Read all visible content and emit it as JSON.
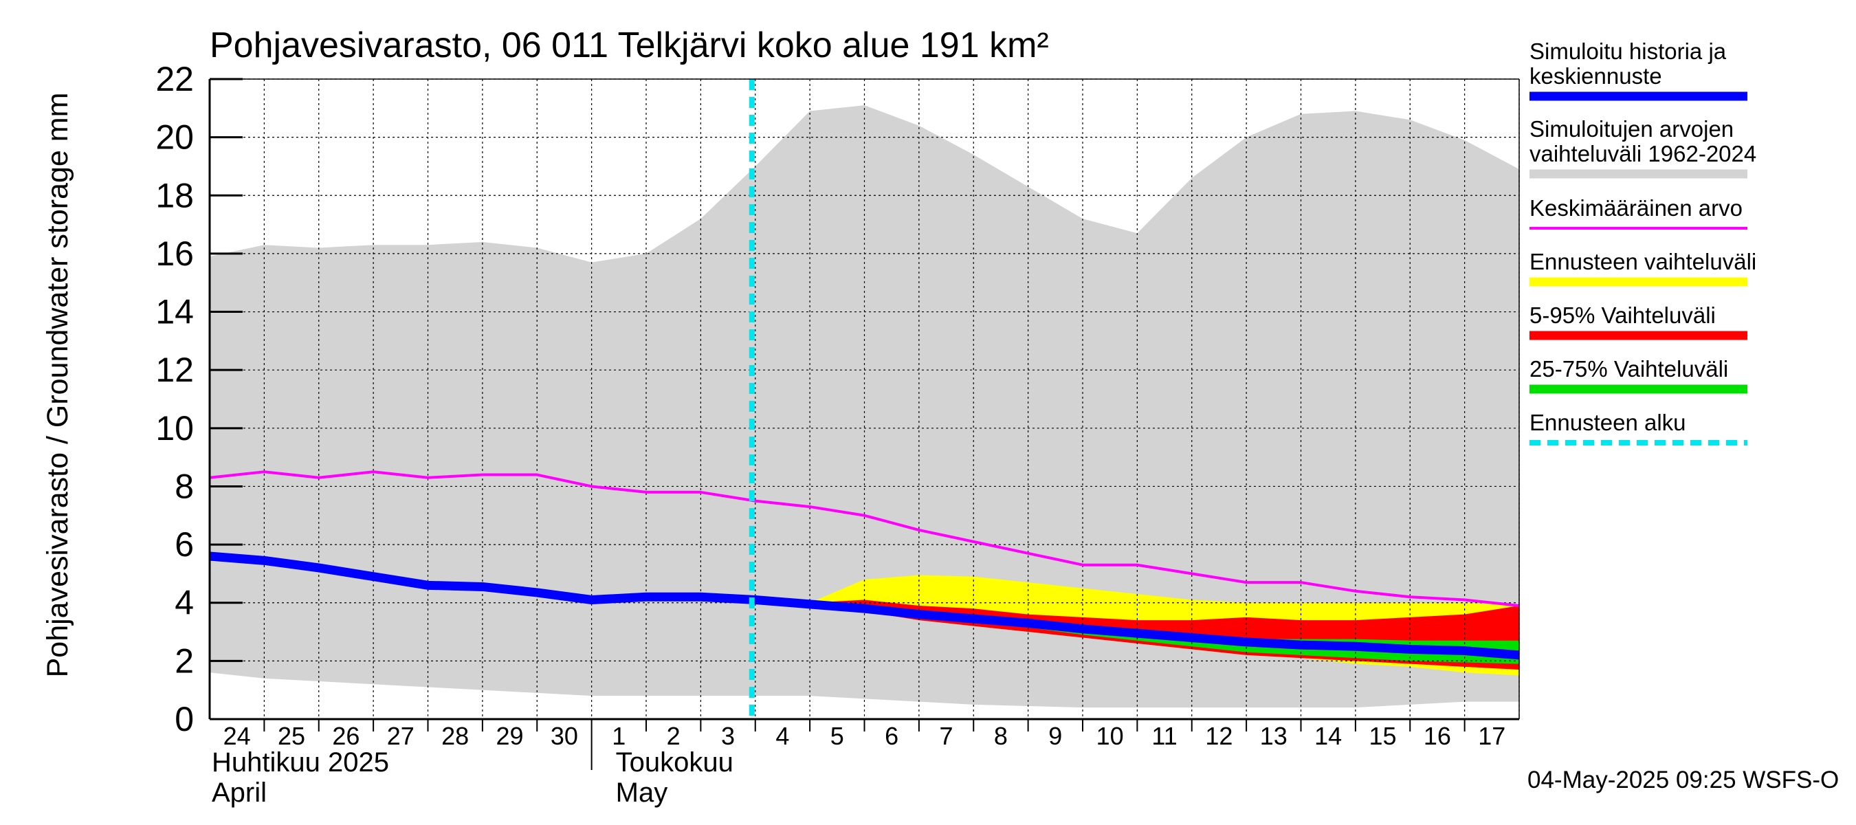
{
  "chart_data": {
    "type": "area",
    "title": "Pohjavesivarasto, 06 011 Telkjärvi koko alue 191 km²",
    "ylabel": "Pohjavesivarasto / Groundwater storage   mm",
    "ylim": [
      0,
      22
    ],
    "yticks": [
      0,
      2,
      4,
      6,
      8,
      10,
      12,
      14,
      16,
      18,
      20,
      22
    ],
    "grid": true,
    "legend_position": "right",
    "x_dates": [
      "2025-04-24",
      "2025-04-25",
      "2025-04-26",
      "2025-04-27",
      "2025-04-28",
      "2025-04-29",
      "2025-04-30",
      "2025-05-01",
      "2025-05-02",
      "2025-05-03",
      "2025-05-04",
      "2025-05-05",
      "2025-05-06",
      "2025-05-07",
      "2025-05-08",
      "2025-05-09",
      "2025-05-10",
      "2025-05-11",
      "2025-05-12",
      "2025-05-13",
      "2025-05-14",
      "2025-05-15",
      "2025-05-16",
      "2025-05-17",
      "2025-05-18"
    ],
    "x_tick_labels": [
      "24",
      "25",
      "26",
      "27",
      "28",
      "29",
      "30",
      "1",
      "2",
      "3",
      "4",
      "5",
      "6",
      "7",
      "8",
      "9",
      "10",
      "11",
      "12",
      "13",
      "14",
      "15",
      "16",
      "17"
    ],
    "month_labels": [
      {
        "fi": "Huhtikuu  2025",
        "en": "April",
        "start": "2025-04-24"
      },
      {
        "fi": "Toukokuu",
        "en": "May",
        "start": "2025-05-01"
      }
    ],
    "forecast_start": "2025-05-04",
    "series": [
      {
        "name": "Simuloitujen arvojen vaihteluväli 1962-2024",
        "kind": "band",
        "color": "#d3d3d3",
        "x": [
          "2025-04-24",
          "2025-04-25",
          "2025-04-26",
          "2025-04-27",
          "2025-04-28",
          "2025-04-29",
          "2025-04-30",
          "2025-05-01",
          "2025-05-02",
          "2025-05-03",
          "2025-05-04",
          "2025-05-05",
          "2025-05-06",
          "2025-05-07",
          "2025-05-08",
          "2025-05-09",
          "2025-05-10",
          "2025-05-11",
          "2025-05-12",
          "2025-05-13",
          "2025-05-14",
          "2025-05-15",
          "2025-05-16",
          "2025-05-17",
          "2025-05-18"
        ],
        "low": [
          1.6,
          1.4,
          1.3,
          1.2,
          1.1,
          1.0,
          0.9,
          0.8,
          0.8,
          0.8,
          0.8,
          0.8,
          0.7,
          0.6,
          0.5,
          0.45,
          0.4,
          0.4,
          0.4,
          0.4,
          0.4,
          0.4,
          0.5,
          0.6,
          0.6
        ],
        "high": [
          15.9,
          16.3,
          16.2,
          16.3,
          16.3,
          16.4,
          16.2,
          15.7,
          16.0,
          17.2,
          19.0,
          20.9,
          21.1,
          20.4,
          19.4,
          18.3,
          17.2,
          16.7,
          18.6,
          20.0,
          20.8,
          20.9,
          20.6,
          19.9,
          18.9
        ]
      },
      {
        "name": "Ennusteen vaihteluväli",
        "kind": "band",
        "color": "#ffff00",
        "x": [
          "2025-05-05",
          "2025-05-06",
          "2025-05-07",
          "2025-05-08",
          "2025-05-09",
          "2025-05-10",
          "2025-05-11",
          "2025-05-12",
          "2025-05-13",
          "2025-05-14",
          "2025-05-15",
          "2025-05-16",
          "2025-05-17",
          "2025-05-18"
        ],
        "low": [
          3.9,
          3.7,
          3.5,
          3.3,
          3.1,
          2.9,
          2.6,
          2.4,
          2.2,
          2.1,
          1.9,
          1.8,
          1.6,
          1.5
        ],
        "high": [
          4.0,
          4.8,
          4.95,
          4.9,
          4.7,
          4.5,
          4.3,
          4.1,
          4.0,
          4.0,
          4.0,
          4.0,
          4.0,
          3.9
        ]
      },
      {
        "name": "5-95% Vaihteluväli",
        "kind": "band",
        "color": "#ff0000",
        "x": [
          "2025-05-05",
          "2025-05-06",
          "2025-05-07",
          "2025-05-08",
          "2025-05-09",
          "2025-05-10",
          "2025-05-11",
          "2025-05-12",
          "2025-05-13",
          "2025-05-14",
          "2025-05-15",
          "2025-05-16",
          "2025-05-17",
          "2025-05-18"
        ],
        "low": [
          3.9,
          3.7,
          3.4,
          3.2,
          3.0,
          2.8,
          2.6,
          2.4,
          2.2,
          2.1,
          2.0,
          1.9,
          1.8,
          1.7
        ],
        "high": [
          4.0,
          4.1,
          3.9,
          3.8,
          3.6,
          3.5,
          3.4,
          3.4,
          3.5,
          3.4,
          3.4,
          3.5,
          3.6,
          3.9
        ]
      },
      {
        "name": "25-75% Vaihteluväli",
        "kind": "band",
        "color": "#00e000",
        "x": [
          "2025-05-05",
          "2025-05-06",
          "2025-05-07",
          "2025-05-08",
          "2025-05-09",
          "2025-05-10",
          "2025-05-11",
          "2025-05-12",
          "2025-05-13",
          "2025-05-14",
          "2025-05-15",
          "2025-05-16",
          "2025-05-17",
          "2025-05-18"
        ],
        "low": [
          3.9,
          3.75,
          3.55,
          3.35,
          3.15,
          2.9,
          2.7,
          2.5,
          2.3,
          2.2,
          2.1,
          2.0,
          1.95,
          1.9
        ],
        "high": [
          4.0,
          3.85,
          3.7,
          3.5,
          3.3,
          3.1,
          2.95,
          2.85,
          2.75,
          2.75,
          2.75,
          2.7,
          2.7,
          2.7
        ]
      },
      {
        "name": "Keskimääräinen arvo",
        "kind": "line",
        "color": "#ff00ff",
        "x": [
          "2025-04-24",
          "2025-04-25",
          "2025-04-26",
          "2025-04-27",
          "2025-04-28",
          "2025-04-29",
          "2025-04-30",
          "2025-05-01",
          "2025-05-02",
          "2025-05-03",
          "2025-05-04",
          "2025-05-05",
          "2025-05-06",
          "2025-05-07",
          "2025-05-08",
          "2025-05-09",
          "2025-05-10",
          "2025-05-11",
          "2025-05-12",
          "2025-05-13",
          "2025-05-14",
          "2025-05-15",
          "2025-05-16",
          "2025-05-17",
          "2025-05-18"
        ],
        "y": [
          8.3,
          8.5,
          8.3,
          8.5,
          8.3,
          8.4,
          8.4,
          8.0,
          7.8,
          7.8,
          7.5,
          7.3,
          7.0,
          6.5,
          6.1,
          5.7,
          5.3,
          5.3,
          5.0,
          4.7,
          4.7,
          4.4,
          4.2,
          4.1,
          3.9
        ]
      },
      {
        "name": "Simuloitu historia ja keskiennuste",
        "kind": "line",
        "color": "#0000ff",
        "x": [
          "2025-04-24",
          "2025-04-25",
          "2025-04-26",
          "2025-04-27",
          "2025-04-28",
          "2025-04-29",
          "2025-04-30",
          "2025-05-01",
          "2025-05-02",
          "2025-05-03",
          "2025-05-04",
          "2025-05-05",
          "2025-05-06",
          "2025-05-07",
          "2025-05-08",
          "2025-05-09",
          "2025-05-10",
          "2025-05-11",
          "2025-05-12",
          "2025-05-13",
          "2025-05-14",
          "2025-05-15",
          "2025-05-16",
          "2025-05-17",
          "2025-05-18"
        ],
        "y": [
          5.6,
          5.45,
          5.2,
          4.9,
          4.6,
          4.55,
          4.35,
          4.1,
          4.2,
          4.2,
          4.1,
          3.95,
          3.8,
          3.6,
          3.45,
          3.3,
          3.1,
          2.95,
          2.8,
          2.65,
          2.55,
          2.5,
          2.4,
          2.35,
          2.2
        ]
      }
    ],
    "legend": [
      {
        "label": "Simuloitu historia ja\nkeskiennuste",
        "color": "#0000ff",
        "style": "solid"
      },
      {
        "label": "Simuloitujen arvojen\nvaihteluväli 1962-2024",
        "color": "#d3d3d3",
        "style": "solid"
      },
      {
        "label": "Keskimääräinen arvo",
        "color": "#ff00ff",
        "style": "thin"
      },
      {
        "label": "Ennusteen vaihteluväli",
        "color": "#ffff00",
        "style": "solid"
      },
      {
        "label": "5-95% Vaihteluväli",
        "color": "#ff0000",
        "style": "solid"
      },
      {
        "label": "25-75% Vaihteluväli",
        "color": "#00e000",
        "style": "solid"
      },
      {
        "label": "Ennusteen alku",
        "color": "#00e5ee",
        "style": "dashed"
      }
    ],
    "footer": "04-May-2025 09:25 WSFS-O"
  }
}
